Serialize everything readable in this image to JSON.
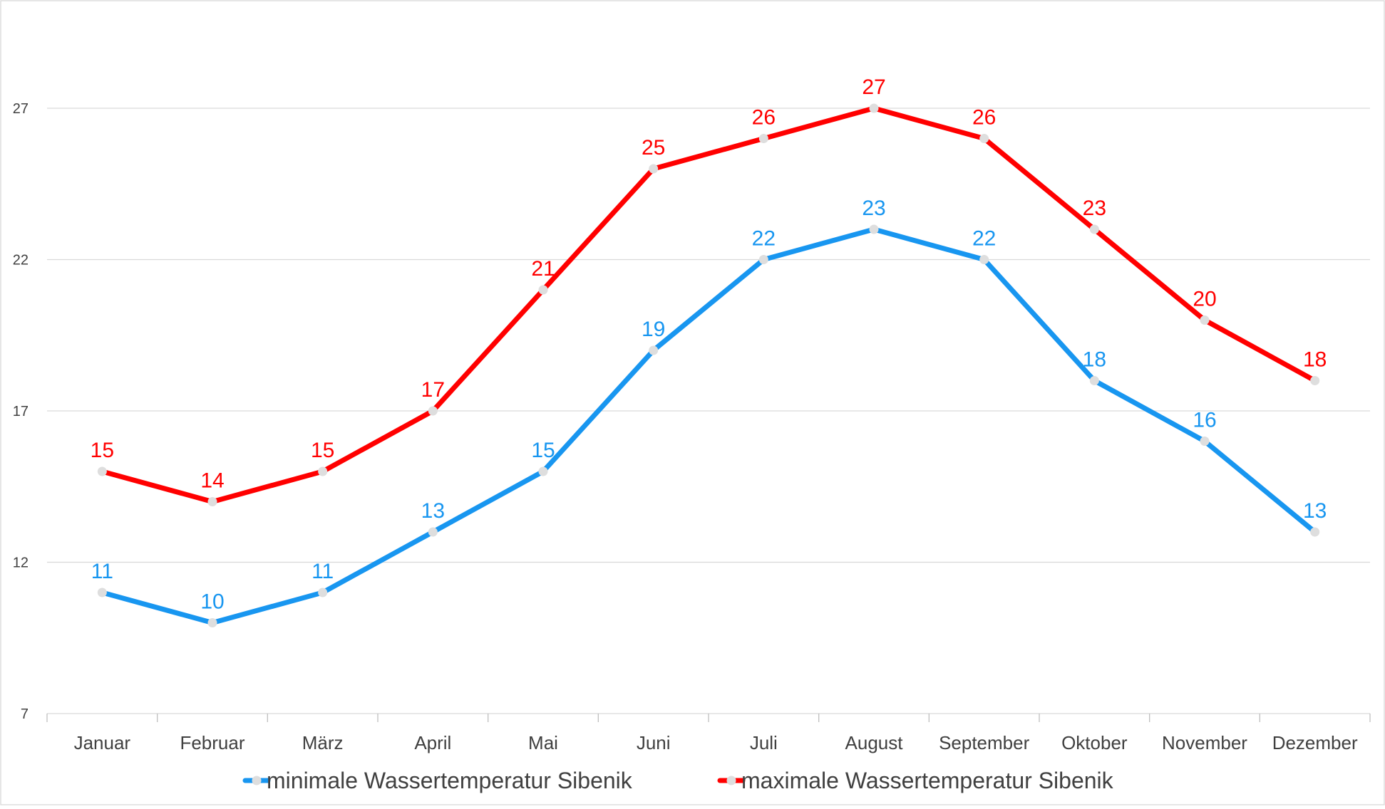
{
  "chart_data": {
    "type": "line",
    "title": "",
    "xlabel": "",
    "ylabel": "",
    "categories": [
      "Januar",
      "Februar",
      "März",
      "April",
      "Mai",
      "Juni",
      "Juli",
      "August",
      "September",
      "Oktober",
      "November",
      "Dezember"
    ],
    "y_ticks": [
      "7",
      "12",
      "17",
      "22",
      "27"
    ],
    "ylim": [
      7,
      29
    ],
    "grid": true,
    "legend_position": "bottom",
    "series": [
      {
        "name": "minimale Wassertemperatur Sibenik",
        "color": "#1896f0",
        "values": [
          11,
          10,
          11,
          13,
          15,
          19,
          22,
          23,
          22,
          18,
          16,
          13
        ]
      },
      {
        "name": "maximale Wassertemperatur Sibenik",
        "color": "#ff0000",
        "values": [
          15,
          14,
          15,
          17,
          21,
          25,
          26,
          27,
          26,
          23,
          20,
          18
        ]
      }
    ],
    "marker_color": "#dedede",
    "data_labels": true
  }
}
